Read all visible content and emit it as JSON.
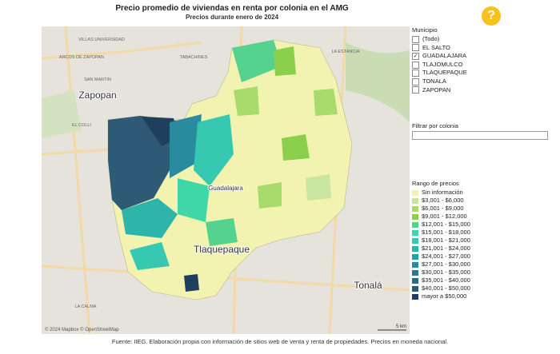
{
  "header": {
    "title": "Precio promedio de viviendas en renta por colonia en el AMG",
    "subtitle": "Precios durante enero de 2024",
    "help": "?"
  },
  "map": {
    "places": [
      {
        "label": "Zapopan",
        "size": "large"
      },
      {
        "label": "Tlaquepaque",
        "size": "large"
      },
      {
        "label": "Tonalá",
        "size": "large"
      },
      {
        "label": "Guadalajara",
        "size": "medium"
      },
      {
        "label": "VILLAS UNIVERSIDAD",
        "size": "small"
      },
      {
        "label": "ARCOS DE ZAPOPAN",
        "size": "small"
      },
      {
        "label": "TABACHINES",
        "size": "small"
      },
      {
        "label": "SAN MARTIN",
        "size": "small"
      },
      {
        "label": "EL COLLI",
        "size": "small"
      },
      {
        "label": "LA ESTANCIA",
        "size": "small"
      },
      {
        "label": "LA CALMA",
        "size": "small"
      }
    ],
    "attribution": "© 2024 Mapbox © OpenStreetMap",
    "scale": "5 km"
  },
  "filters": {
    "municipio": {
      "label": "Municipio",
      "options": [
        {
          "label": "(Todo)",
          "checked": false
        },
        {
          "label": "EL SALTO",
          "checked": false
        },
        {
          "label": "GUADALAJARA",
          "checked": true
        },
        {
          "label": "TLAJOMULCO",
          "checked": false
        },
        {
          "label": "TLAQUEPAQUE",
          "checked": false
        },
        {
          "label": "TONALA",
          "checked": false
        },
        {
          "label": "ZAPOPAN",
          "checked": false
        }
      ]
    },
    "colonia": {
      "label": "Filtrar por colonia"
    }
  },
  "legend": {
    "title": "Rango de precios",
    "items": [
      {
        "label": "Sin información",
        "color": "#f3f3b1"
      },
      {
        "label": "$3,001 - $6,000",
        "color": "#c9e6a0"
      },
      {
        "label": "$6,001 - $9,000",
        "color": "#a8da6c"
      },
      {
        "label": "$9,001 - $12,000",
        "color": "#8bd04d"
      },
      {
        "label": "$12,001 - $15,000",
        "color": "#55d38e"
      },
      {
        "label": "$15,001 - $18,000",
        "color": "#3fd7a8"
      },
      {
        "label": "$18,001 - $21,000",
        "color": "#36c8b0"
      },
      {
        "label": "$21,001 - $24,000",
        "color": "#2db5ac"
      },
      {
        "label": "$24,001 - $27,000",
        "color": "#27a0a6"
      },
      {
        "label": "$27,001 - $30,000",
        "color": "#2a8b9e"
      },
      {
        "label": "$30,001 - $35,000",
        "color": "#2d7991"
      },
      {
        "label": "$35,001 - $40,000",
        "color": "#2f6a85"
      },
      {
        "label": "$40,001 - $50,000",
        "color": "#2e5a78"
      },
      {
        "label": "mayor a $50,000",
        "color": "#1f3f5c"
      }
    ]
  },
  "footer": "Fuente: IIEG. Elaboración propia con información de sitios web de venta y renta de propiedades. Precios en moneda nacional."
}
